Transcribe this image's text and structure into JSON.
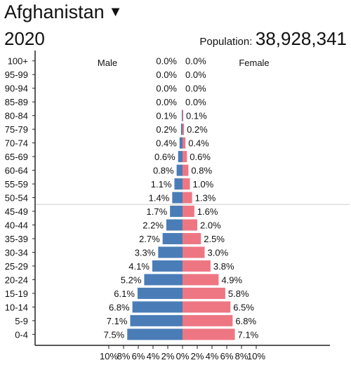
{
  "header": {
    "country": "Afghanistan",
    "year": "2020",
    "population_label": "Population:",
    "population_value": "38,928,341"
  },
  "colors": {
    "male": "#4a7db8",
    "female": "#ee7683",
    "axis": "#222222",
    "divider": "#cfcfcf"
  },
  "chart_data": {
    "type": "bar",
    "orientation": "horizontal-population-pyramid",
    "categories": [
      "100+",
      "95-99",
      "90-94",
      "85-89",
      "80-84",
      "75-79",
      "70-74",
      "65-69",
      "60-64",
      "55-59",
      "50-54",
      "45-49",
      "40-44",
      "35-39",
      "30-34",
      "25-29",
      "20-24",
      "15-19",
      "10-14",
      "5-9",
      "0-4"
    ],
    "series": [
      {
        "name": "Male",
        "values": [
          0.0,
          0.0,
          0.0,
          0.0,
          0.1,
          0.2,
          0.4,
          0.6,
          0.8,
          1.1,
          1.4,
          1.7,
          2.2,
          2.7,
          3.3,
          4.1,
          5.2,
          6.1,
          6.8,
          7.1,
          7.5
        ],
        "labels": [
          "0.0%",
          "0.0%",
          "0.0%",
          "0.0%",
          "0.1%",
          "0.2%",
          "0.4%",
          "0.6%",
          "0.8%",
          "1.1%",
          "1.4%",
          "1.7%",
          "2.2%",
          "2.7%",
          "3.3%",
          "4.1%",
          "5.2%",
          "6.1%",
          "6.8%",
          "7.1%",
          "7.5%"
        ]
      },
      {
        "name": "Female",
        "values": [
          0.0,
          0.0,
          0.0,
          0.0,
          0.1,
          0.2,
          0.4,
          0.6,
          0.8,
          1.0,
          1.3,
          1.6,
          2.0,
          2.5,
          3.0,
          3.8,
          4.9,
          5.8,
          6.5,
          6.8,
          7.1
        ],
        "labels": [
          "0.0%",
          "0.0%",
          "0.0%",
          "0.0%",
          "0.1%",
          "0.2%",
          "0.4%",
          "0.6%",
          "0.8%",
          "1.0%",
          "1.3%",
          "1.6%",
          "2.0%",
          "2.5%",
          "3.0%",
          "3.8%",
          "4.9%",
          "5.8%",
          "6.5%",
          "6.8%",
          "7.1%"
        ]
      }
    ],
    "x_ticks": [
      "10%",
      "8%",
      "6%",
      "4%",
      "2%",
      "0%",
      "2%",
      "4%",
      "6%",
      "8%",
      "10%"
    ],
    "xlim": [
      -10,
      10
    ],
    "grid": false,
    "divider_after_category": "50-54"
  }
}
